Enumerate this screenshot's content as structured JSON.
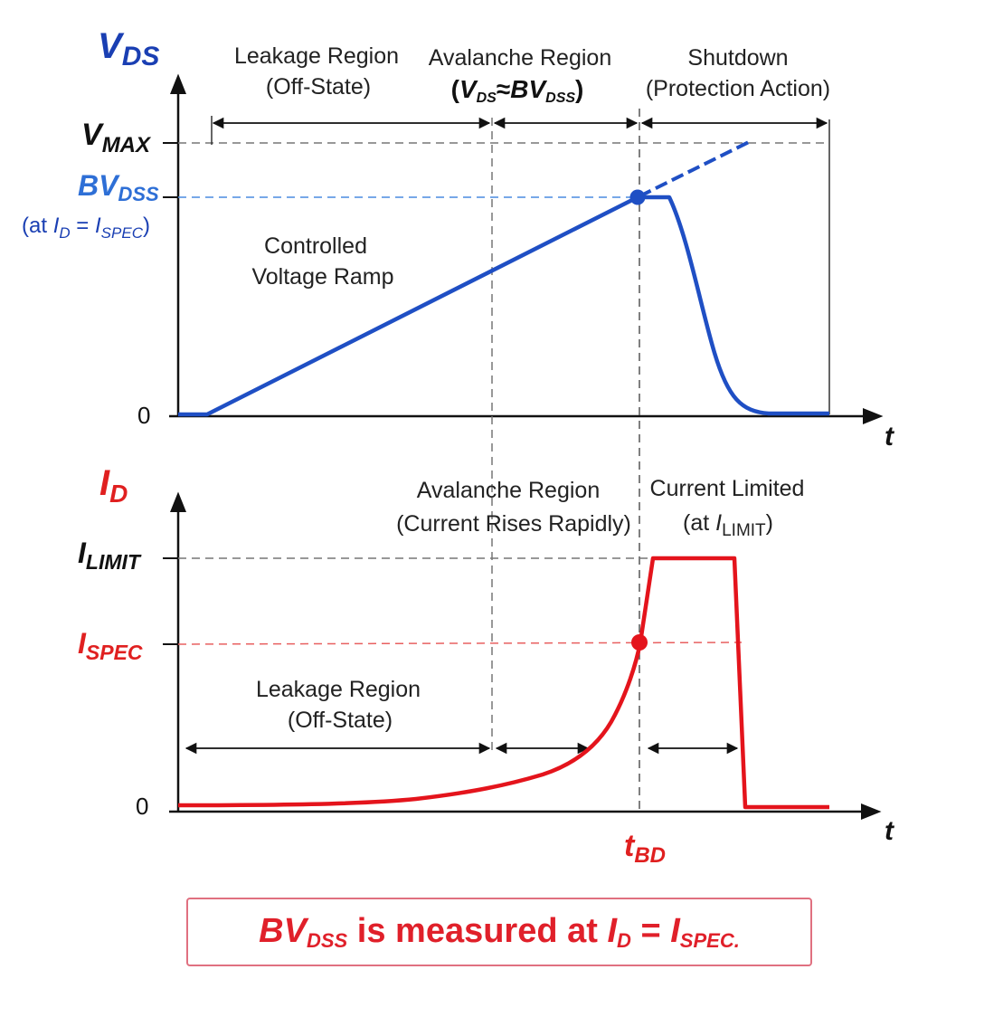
{
  "top": {
    "y_axis_label": "V",
    "y_axis_label_sub": "DS",
    "vmax_main": "V",
    "vmax_sub": "MAX",
    "bvdss_main": "BV",
    "bvdss_sub": "DSS",
    "bvdss_cond_prefix": "(at ",
    "bvdss_cond_i": "I",
    "bvdss_cond_d": "D",
    "bvdss_cond_eq": " = ",
    "bvdss_cond_i2": "I",
    "bvdss_cond_spec": "SPEC",
    "bvdss_cond_suffix": ")",
    "zero": "0",
    "t_label": "t",
    "region_leakage_1": "Leakage Region",
    "region_leakage_2": "(Off-State)",
    "region_avalanche_1": "Avalanche Region",
    "region_avalanche_2_open": "(",
    "region_avalanche_2_v": "V",
    "region_avalanche_2_vsub": "DS",
    "region_avalanche_2_approx": "≈",
    "region_avalanche_2_bv": "BV",
    "region_avalanche_2_bvsub": "DSS",
    "region_avalanche_2_close": ")",
    "region_shutdown_1": "Shutdown",
    "region_shutdown_2": "(Protection Action)",
    "ramp_1": "Controlled",
    "ramp_2": "Voltage Ramp"
  },
  "bottom": {
    "y_axis_label": "I",
    "y_axis_label_sub": "D",
    "ilimit_main": "I",
    "ilimit_sub": "LIMIT",
    "ispec_main": "I",
    "ispec_sub": "SPEC",
    "zero": "0",
    "t_label": "t",
    "tbd_main": "t",
    "tbd_sub": "BD",
    "region_avalanche_1": "Avalanche Region",
    "region_avalanche_2": "(Current Rises Rapidly)",
    "region_limited_1": "Current Limited",
    "region_limited_2_prefix": "(at ",
    "region_limited_2_i": "I",
    "region_limited_2_sub": "LIMIT",
    "region_limited_2_suffix": ")",
    "region_leakage_1": "Leakage Region",
    "region_leakage_2": "(Off-State)"
  },
  "note": {
    "bv": "BV",
    "bv_sub": "DSS",
    "text": " is measured at ",
    "i": "I",
    "i_sub": "D",
    "eq": " = ",
    "i2": "I",
    "i2_sub": "SPEC."
  },
  "colors": {
    "voltage_curve": "#1f4fc4",
    "current_curve": "#e4141c",
    "vds_label": "#1a3fb3",
    "bvdss_label": "#2e6fd6",
    "id_label": "#e02020"
  }
}
